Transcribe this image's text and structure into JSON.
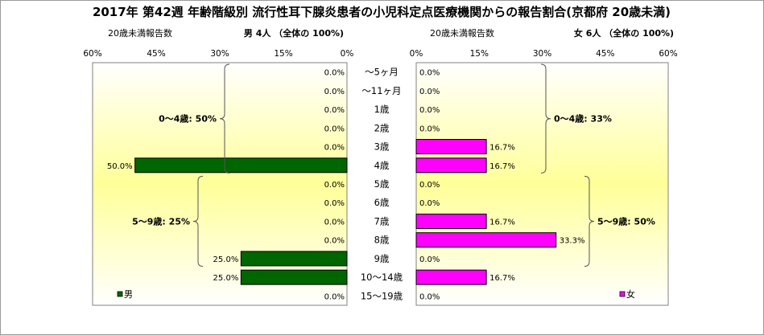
{
  "header": {
    "title": "2017年 第42週 年齢階級別 流行性耳下腺炎患者の小児科定点医療機関からの報告割合(京都府 20歳未満)",
    "left_caption": "20歳未満報告数",
    "left_summary": "男  4人 （全体の  100%)",
    "right_caption": "20歳未満報告数",
    "right_summary": "女  6人 （全体の  100%)"
  },
  "chart_data": [
    {
      "type": "bar",
      "orientation": "horizontal",
      "direction": "right-to-left",
      "categories": [
        "～5ヶ月",
        "～11ヶ月",
        "1歳",
        "2歳",
        "3歳",
        "4歳",
        "5歳",
        "6歳",
        "7歳",
        "8歳",
        "9歳",
        "10～14歳",
        "15～19歳"
      ],
      "series": [
        {
          "name": "男",
          "color": "#006600",
          "values": [
            0,
            0,
            0,
            0,
            0,
            50,
            0,
            0,
            0,
            0,
            25,
            25,
            0
          ],
          "labels": [
            "0.0%",
            "0.0%",
            "0.0%",
            "0.0%",
            "0.0%",
            "50.0%",
            "0.0%",
            "0.0%",
            "0.0%",
            "0.0%",
            "25.0%",
            "25.0%",
            "0.0%"
          ]
        }
      ],
      "xlim": [
        0,
        60
      ],
      "xticks": [
        "0%",
        "15%",
        "30%",
        "45%",
        "60%"
      ],
      "groups": [
        {
          "label": "0～4歳: 50%",
          "from": 0,
          "to": 5
        },
        {
          "label": "5～9歳: 25%",
          "from": 6,
          "to": 10
        }
      ],
      "legend": "bottom-left"
    },
    {
      "type": "bar",
      "orientation": "horizontal",
      "direction": "left-to-right",
      "categories": [
        "～5ヶ月",
        "～11ヶ月",
        "1歳",
        "2歳",
        "3歳",
        "4歳",
        "5歳",
        "6歳",
        "7歳",
        "8歳",
        "9歳",
        "10～14歳",
        "15～19歳"
      ],
      "series": [
        {
          "name": "女",
          "color": "#ff00ff",
          "values": [
            0,
            0,
            0,
            0,
            16.7,
            16.7,
            0,
            0,
            16.7,
            33.3,
            0,
            16.7,
            0
          ],
          "labels": [
            "0.0%",
            "0.0%",
            "0.0%",
            "0.0%",
            "16.7%",
            "16.7%",
            "0.0%",
            "0.0%",
            "16.7%",
            "33.3%",
            "0.0%",
            "16.7%",
            "0.0%"
          ]
        }
      ],
      "xlim": [
        0,
        60
      ],
      "xticks": [
        "0%",
        "15%",
        "30%",
        "45%",
        "60%"
      ],
      "groups": [
        {
          "label": "0～4歳: 33%",
          "from": 0,
          "to": 5
        },
        {
          "label": "5～9歳: 50%",
          "from": 6,
          "to": 10
        }
      ],
      "legend": "bottom-right"
    }
  ]
}
